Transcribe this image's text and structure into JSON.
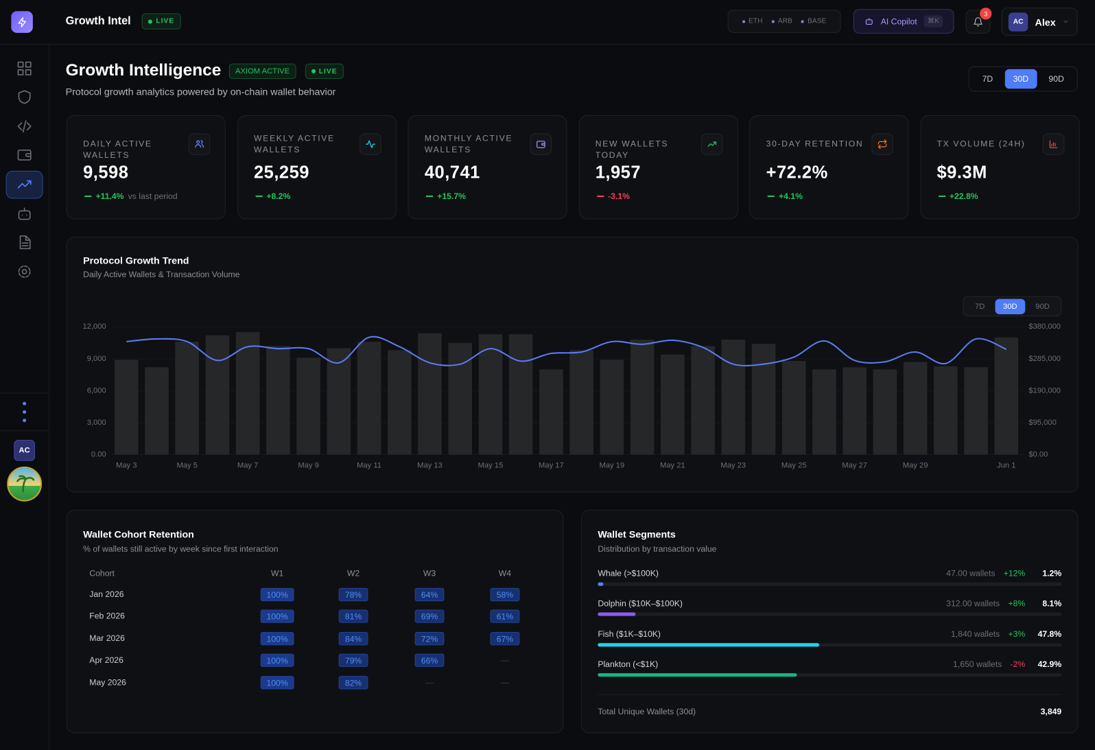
{
  "header": {
    "brand": "Growth Intel",
    "status": "LIVE",
    "chains": [
      "ETH",
      "ARB",
      "BASE"
    ],
    "copilot": "AI Copilot",
    "shortcut": "⌘K",
    "notifications": 3,
    "user_initials": "AC",
    "user_name": "Alex"
  },
  "sidebar": {
    "user_initials": "AC"
  },
  "page": {
    "title": "Growth Intelligence",
    "badges": [
      "AXIOM ACTIVE",
      "LIVE"
    ],
    "subtitle": "Protocol growth analytics powered by on-chain wallet behavior",
    "ranges": [
      "7D",
      "30D",
      "90D"
    ],
    "active_range": "30D"
  },
  "kpis": [
    {
      "label": "DAILY ACTIVE WALLETS",
      "value": "9,598",
      "change": "+11.4%",
      "note": "vs last period"
    },
    {
      "label": "WEEKLY ACTIVE WALLETS",
      "value": "25,259",
      "change": "+8.2%"
    },
    {
      "label": "MONTHLY ACTIVE WALLETS",
      "value": "40,741",
      "change": "+15.7%"
    },
    {
      "label": "NEW WALLETS TODAY",
      "value": "1,957",
      "change": "-3.1%"
    },
    {
      "label": "30-DAY RETENTION",
      "value": "+72.2%",
      "change": "+4.1%"
    },
    {
      "label": "TX VOLUME (24H)",
      "value": "$9.3M",
      "change": "+22.8%"
    }
  ],
  "chart_data": {
    "type": "bar",
    "title": "Protocol Growth Trend",
    "subtitle": "Daily Active Wallets & Transaction Volume",
    "ranges": [
      "7D",
      "30D",
      "90D"
    ],
    "active_range": "30D",
    "categories": [
      "May 3",
      null,
      "May 5",
      null,
      "May 7",
      null,
      "May 9",
      null,
      "May 11",
      null,
      "May 13",
      null,
      "May 15",
      null,
      "May 17",
      null,
      "May 19",
      null,
      "May 21",
      null,
      "May 23",
      null,
      "May 25",
      null,
      "May 27",
      null,
      "May 29",
      null,
      null,
      "Jun 1"
    ],
    "series": [
      {
        "type": "bar",
        "color": "#262729",
        "values": [
          8900,
          8200,
          10600,
          11200,
          11500,
          10200,
          9100,
          10000,
          10600,
          9800,
          11400,
          10500,
          11300,
          11300,
          8000,
          9800,
          8900,
          10800,
          9400,
          10200,
          10800,
          10400,
          8800,
          8000,
          8200,
          8000,
          8700,
          8300,
          8200,
          11000
        ]
      },
      {
        "type": "line",
        "axis": "y2",
        "color": "#5b7cf7",
        "values": [
          336000,
          344000,
          336000,
          280000,
          321000,
          315000,
          315000,
          273000,
          349000,
          321000,
          273000,
          269000,
          315000,
          278000,
          301000,
          305000,
          336000,
          328000,
          340000,
          319000,
          269000,
          269000,
          290000,
          338000,
          280000,
          276000,
          305000,
          271000,
          344000,
          313000
        ]
      }
    ],
    "ylim": [
      0,
      12000
    ],
    "yticks": [
      {
        "value": 0,
        "label": "0.00"
      },
      {
        "value": 3000,
        "label": "3,000"
      },
      {
        "value": 6000,
        "label": "6,000"
      },
      {
        "value": 9000,
        "label": "9,000"
      },
      {
        "value": 12000,
        "label": "12,000"
      }
    ],
    "y2lim": [
      0,
      380000
    ],
    "y2ticks": [
      {
        "value": 0,
        "label": "$0.00"
      },
      {
        "value": 95000,
        "label": "$95,000"
      },
      {
        "value": 190000,
        "label": "$190,000"
      },
      {
        "value": 285000,
        "label": "$285,000"
      },
      {
        "value": 380000,
        "label": "$380,000"
      }
    ],
    "grid": true
  },
  "cohort": {
    "title": "Wallet Cohort Retention",
    "subtitle": "% of wallets still active by week since first interaction",
    "columns": [
      "Cohort",
      "W1",
      "W2",
      "W3",
      "W4"
    ],
    "rows": [
      [
        "Jan 2026",
        "100%",
        "78%",
        "64%",
        "58%"
      ],
      [
        "Feb 2026",
        "100%",
        "81%",
        "69%",
        "61%"
      ],
      [
        "Mar 2026",
        "100%",
        "84%",
        "72%",
        "67%"
      ],
      [
        "Apr 2026",
        "100%",
        "79%",
        "66%",
        "—"
      ],
      [
        "May 2026",
        "100%",
        "82%",
        "—",
        "—"
      ]
    ]
  },
  "segments": {
    "title": "Wallet Segments",
    "subtitle": "Distribution by transaction value",
    "items": [
      {
        "name": "Whale (>$100K)",
        "wallets": "47.00 wallets",
        "change": "+12%",
        "share": 1.2,
        "share_label": "1.2%",
        "color": "#5b7cf7"
      },
      {
        "name": "Dolphin ($10K–$100K)",
        "wallets": "312.00 wallets",
        "change": "+8%",
        "share": 8.1,
        "share_label": "8.1%",
        "color": "#8b5cf6"
      },
      {
        "name": "Fish ($1K–$10K)",
        "wallets": "1,840 wallets",
        "change": "+3%",
        "share": 47.8,
        "share_label": "47.8%",
        "color": "#22d3ee"
      },
      {
        "name": "Plankton (<$1K)",
        "wallets": "1,650 wallets",
        "change": "-2%",
        "share": 42.9,
        "share_label": "42.9%",
        "color": "#10b981"
      }
    ],
    "total_label": "Total Unique Wallets (30d)",
    "total": "3,849"
  }
}
